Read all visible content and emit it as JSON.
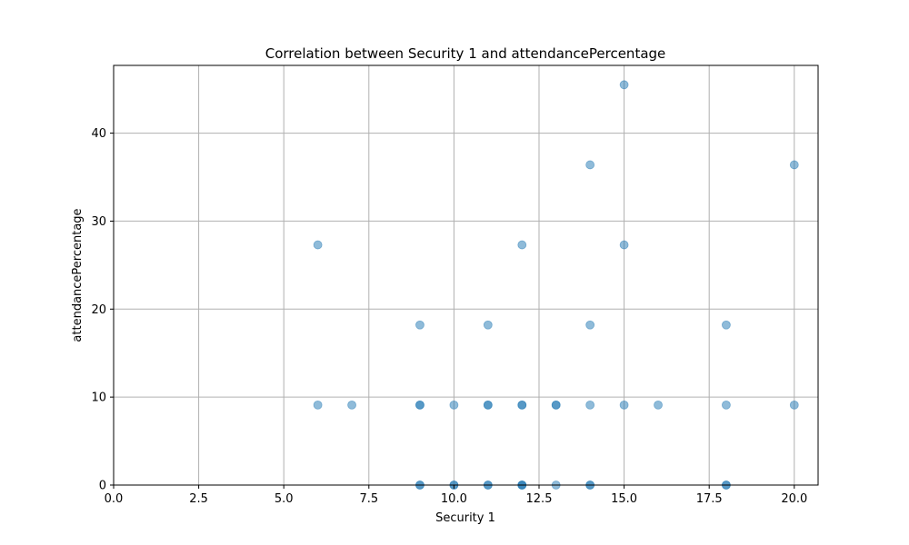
{
  "chart_data": {
    "type": "scatter",
    "title": "Correlation between Security 1 and attendancePercentage",
    "xlabel": "Security 1",
    "ylabel": "attendancePercentage",
    "xlim": [
      0,
      20.7
    ],
    "ylim": [
      0,
      47.7
    ],
    "xticks": [
      0,
      2.5,
      5,
      7.5,
      10,
      12.5,
      15,
      17.5,
      20
    ],
    "xtick_labels": [
      "0.0",
      "2.5",
      "5.0",
      "7.5",
      "10.0",
      "12.5",
      "15.0",
      "17.5",
      "20.0"
    ],
    "yticks": [
      0,
      10,
      20,
      30,
      40
    ],
    "ytick_labels": [
      "0",
      "10",
      "20",
      "30",
      "40"
    ],
    "grid": true,
    "point_color": "#1f77b4",
    "point_alpha": 0.5,
    "series": [
      {
        "x": [
          15,
          14,
          20,
          6,
          12,
          15,
          9,
          11,
          14,
          18,
          6,
          7,
          9,
          9,
          10,
          11,
          11,
          12,
          12,
          13,
          13,
          14,
          15,
          16,
          18,
          20,
          9,
          9,
          10,
          10,
          11,
          11,
          12,
          12,
          12,
          13,
          14,
          14,
          18,
          18
        ],
        "y": [
          45.5,
          36.4,
          36.4,
          27.3,
          27.3,
          27.3,
          18.2,
          18.2,
          18.2,
          18.2,
          9.1,
          9.1,
          9.1,
          9.1,
          9.1,
          9.1,
          9.1,
          9.1,
          9.1,
          9.1,
          9.1,
          9.1,
          9.1,
          9.1,
          9.1,
          9.1,
          0,
          0,
          0,
          0,
          0,
          0,
          0,
          0,
          0,
          0,
          0,
          0,
          0,
          0
        ]
      }
    ]
  }
}
